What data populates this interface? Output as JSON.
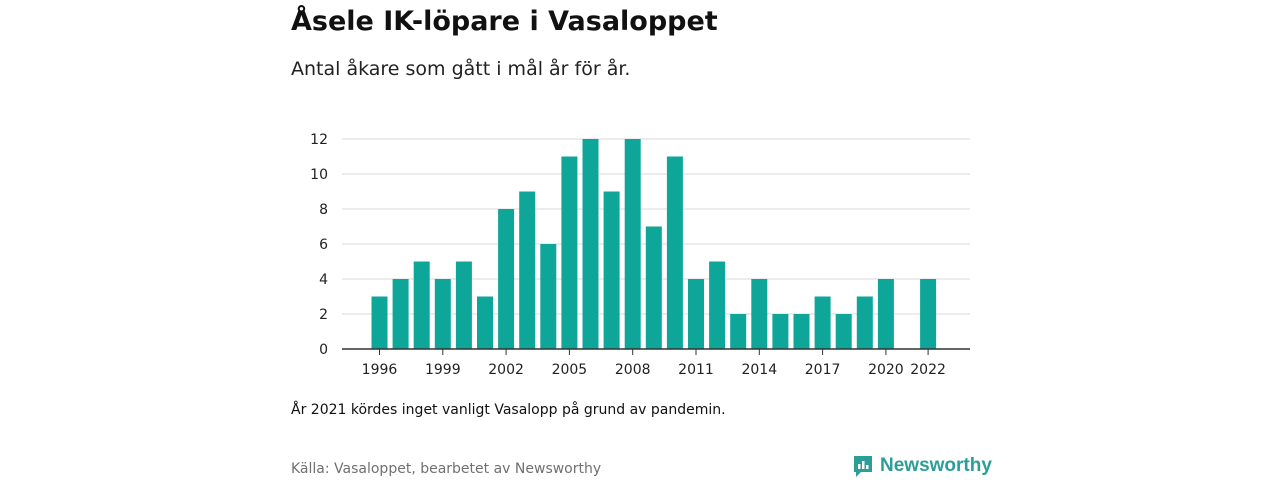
{
  "header": {
    "title": "Åsele IK-löpare i Vasaloppet",
    "subtitle": "Antal åkare som gått i mål år för år."
  },
  "chart_data": {
    "type": "bar",
    "x": [
      1996,
      1997,
      1998,
      1999,
      2000,
      2001,
      2002,
      2003,
      2004,
      2005,
      2006,
      2007,
      2008,
      2009,
      2010,
      2011,
      2012,
      2013,
      2014,
      2015,
      2016,
      2017,
      2018,
      2019,
      2020,
      2021,
      2022
    ],
    "values": [
      3,
      4,
      5,
      4,
      5,
      3,
      8,
      9,
      6,
      11,
      12,
      9,
      12,
      7,
      11,
      4,
      5,
      2,
      4,
      2,
      2,
      3,
      2,
      3,
      4,
      null,
      4
    ],
    "x_tick_labels": [
      "1996",
      "1999",
      "2002",
      "2005",
      "2008",
      "2011",
      "2014",
      "2017",
      "2020",
      "2022"
    ],
    "y_ticks": [
      0,
      2,
      4,
      6,
      8,
      10,
      12
    ],
    "ylim": [
      0,
      12
    ],
    "grid": true,
    "bar_color": "#0fa69a",
    "grid_color": "#d9d9d9",
    "axis_color": "#333333"
  },
  "footer": {
    "note": "År 2021 kördes inget vanligt Vasalopp på grund av pandemin.",
    "source": "Källa: Vasaloppet, bearbetet av Newsworthy",
    "logo_text": "Newsworthy",
    "logo_icon": "newsworthy-logo-icon",
    "logo_color": "#2c9e98"
  }
}
